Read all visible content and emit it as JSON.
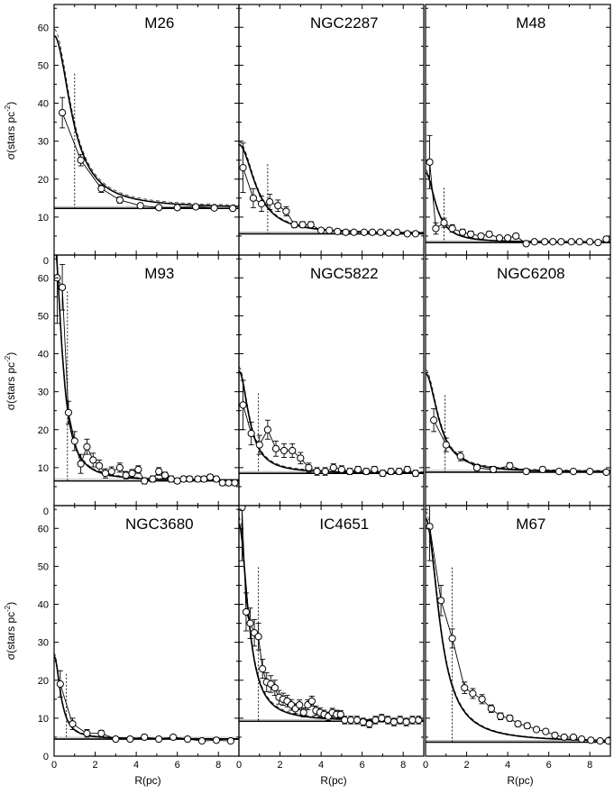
{
  "figure": {
    "ylabel_prefix": "σ(stars pc",
    "ylabel_exp": "-2",
    "ylabel_suffix": ")",
    "xlabel": "R(pc)",
    "colors": {
      "ink": "#000000",
      "background": "#ffffff"
    }
  },
  "chart_data": [
    {
      "type": "scatter",
      "title": "M26",
      "xlabel": "",
      "ylabel": "σ(stars pc-2)",
      "xlim": [
        0,
        9
      ],
      "ylim": [
        0,
        66
      ],
      "xticks": [
        0,
        2,
        4,
        6,
        8
      ],
      "yticks": [
        10,
        20,
        30,
        40,
        50,
        60
      ],
      "background": 12.3,
      "core_radius": 1.0,
      "points": [
        [
          0.4,
          37.5,
          4.0
        ],
        [
          1.3,
          25.0,
          1.5
        ],
        [
          2.3,
          17.5,
          1.0
        ],
        [
          3.2,
          14.5,
          0.8
        ],
        [
          4.2,
          13.0,
          0.6
        ],
        [
          5.1,
          12.5,
          0.5
        ],
        [
          6.0,
          12.5,
          0.5
        ],
        [
          6.9,
          12.7,
          0.5
        ],
        [
          7.8,
          12.4,
          0.5
        ],
        [
          8.7,
          12.3,
          0.5
        ]
      ],
      "fit": {
        "central": 45.5,
        "rc": 0.95
      }
    },
    {
      "type": "scatter",
      "title": "NGC2287",
      "xlabel": "",
      "ylabel": "",
      "xlim": [
        0,
        9
      ],
      "ylim": [
        0,
        66
      ],
      "xticks": [
        0,
        2,
        4,
        6,
        8
      ],
      "yticks": [
        10,
        20,
        30,
        40,
        50,
        60
      ],
      "background": 5.6,
      "core_radius": 1.4,
      "points": [
        [
          0.2,
          23.0,
          6.5
        ],
        [
          0.7,
          15.0,
          2.5
        ],
        [
          1.1,
          13.5,
          2.0
        ],
        [
          1.5,
          14.0,
          2.0
        ],
        [
          1.9,
          13.0,
          1.5
        ],
        [
          2.3,
          11.5,
          1.2
        ],
        [
          2.7,
          8.0,
          0.8
        ],
        [
          3.1,
          8.0,
          0.8
        ],
        [
          3.5,
          8.0,
          0.8
        ],
        [
          4.0,
          6.5,
          0.6
        ],
        [
          4.4,
          6.5,
          0.6
        ],
        [
          4.8,
          6.2,
          0.6
        ],
        [
          5.2,
          6.0,
          0.5
        ],
        [
          5.6,
          6.0,
          0.5
        ],
        [
          6.1,
          6.0,
          0.5
        ],
        [
          6.5,
          6.0,
          0.5
        ],
        [
          6.9,
          6.0,
          0.5
        ],
        [
          7.3,
          5.8,
          0.5
        ],
        [
          7.7,
          6.0,
          0.5
        ],
        [
          8.2,
          5.6,
          0.5
        ],
        [
          8.6,
          5.6,
          0.5
        ]
      ],
      "fit": {
        "central": 23.5,
        "rc": 0.9
      }
    },
    {
      "type": "scatter",
      "title": "M48",
      "xlabel": "",
      "ylabel": "",
      "xlim": [
        0,
        9
      ],
      "ylim": [
        0,
        66
      ],
      "xticks": [
        0,
        2,
        4,
        6,
        8
      ],
      "yticks": [
        10,
        20,
        30,
        40,
        50,
        60
      ],
      "background": 3.3,
      "core_radius": 0.9,
      "points": [
        [
          0.2,
          24.5,
          7.0
        ],
        [
          0.5,
          7.0,
          1.5
        ],
        [
          0.9,
          8.5,
          1.2
        ],
        [
          1.3,
          7.0,
          1.0
        ],
        [
          1.8,
          6.0,
          0.8
        ],
        [
          2.2,
          5.5,
          0.8
        ],
        [
          2.7,
          5.0,
          0.7
        ],
        [
          3.1,
          5.5,
          0.7
        ],
        [
          3.6,
          4.5,
          0.6
        ],
        [
          4.0,
          4.5,
          0.6
        ],
        [
          4.4,
          5.0,
          0.6
        ],
        [
          4.9,
          3.0,
          0.4
        ],
        [
          5.3,
          3.5,
          0.4
        ],
        [
          5.8,
          3.5,
          0.4
        ],
        [
          6.2,
          3.5,
          0.4
        ],
        [
          6.6,
          3.5,
          0.4
        ],
        [
          7.1,
          3.5,
          0.4
        ],
        [
          7.5,
          3.5,
          0.4
        ],
        [
          8.0,
          3.5,
          0.4
        ],
        [
          8.4,
          3.3,
          0.4
        ],
        [
          8.8,
          4.2,
          0.4
        ]
      ],
      "fit": {
        "central": 18.5,
        "rc": 0.55
      }
    },
    {
      "type": "scatter",
      "title": "M93",
      "xlabel": "",
      "ylabel": "σ(stars pc-2)",
      "xlim": [
        0,
        9
      ],
      "ylim": [
        0,
        66
      ],
      "xticks": [
        0,
        2,
        4,
        6,
        8
      ],
      "yticks": [
        10,
        20,
        30,
        40,
        50,
        60
      ],
      "background": 6.5,
      "core_radius": 0.65,
      "points": [
        [
          0.15,
          60.0,
          12.0
        ],
        [
          0.4,
          57.5,
          6.0
        ],
        [
          0.7,
          24.5,
          3.0
        ],
        [
          1.0,
          17.0,
          2.5
        ],
        [
          1.3,
          11.0,
          2.5
        ],
        [
          1.6,
          15.5,
          2.0
        ],
        [
          1.9,
          12.0,
          1.8
        ],
        [
          2.2,
          10.5,
          1.5
        ],
        [
          2.5,
          8.5,
          1.2
        ],
        [
          2.8,
          9.0,
          1.2
        ],
        [
          3.2,
          10.0,
          1.2
        ],
        [
          3.5,
          8.0,
          1.0
        ],
        [
          3.8,
          8.5,
          1.0
        ],
        [
          4.1,
          9.5,
          1.0
        ],
        [
          4.4,
          6.5,
          0.8
        ],
        [
          4.8,
          7.0,
          0.8
        ],
        [
          5.1,
          9.0,
          1.0
        ],
        [
          5.4,
          8.0,
          0.8
        ],
        [
          5.7,
          7.0,
          0.8
        ],
        [
          6.0,
          6.5,
          0.7
        ],
        [
          6.3,
          7.0,
          0.7
        ],
        [
          6.6,
          7.0,
          0.7
        ],
        [
          7.0,
          7.0,
          0.7
        ],
        [
          7.3,
          7.0,
          0.7
        ],
        [
          7.6,
          7.5,
          0.7
        ],
        [
          7.9,
          7.0,
          0.7
        ],
        [
          8.2,
          6.0,
          0.7
        ],
        [
          8.5,
          6.0,
          0.7
        ],
        [
          8.8,
          6.0,
          0.7
        ]
      ],
      "fit": {
        "central": 64.0,
        "rc": 0.42
      }
    },
    {
      "type": "scatter",
      "title": "NGC5822",
      "xlabel": "",
      "ylabel": "",
      "xlim": [
        0,
        9
      ],
      "ylim": [
        0,
        66
      ],
      "xticks": [
        0,
        2,
        4,
        6,
        8
      ],
      "yticks": [
        10,
        20,
        30,
        40,
        50,
        60
      ],
      "background": 8.5,
      "core_radius": 0.95,
      "points": [
        [
          0.2,
          26.5,
          6.5
        ],
        [
          0.6,
          19.0,
          3.0
        ],
        [
          1.0,
          16.0,
          2.5
        ],
        [
          1.4,
          20.0,
          2.5
        ],
        [
          1.8,
          15.0,
          2.0
        ],
        [
          2.2,
          14.5,
          1.8
        ],
        [
          2.6,
          14.5,
          1.8
        ],
        [
          3.0,
          12.5,
          1.5
        ],
        [
          3.4,
          10.0,
          1.2
        ],
        [
          3.8,
          9.0,
          1.0
        ],
        [
          4.2,
          9.0,
          1.0
        ],
        [
          4.6,
          10.0,
          1.0
        ],
        [
          5.0,
          9.5,
          1.0
        ],
        [
          5.4,
          9.0,
          0.8
        ],
        [
          5.8,
          9.5,
          0.8
        ],
        [
          6.2,
          9.0,
          0.8
        ],
        [
          6.6,
          9.5,
          0.8
        ],
        [
          7.0,
          8.5,
          0.8
        ],
        [
          7.4,
          9.0,
          0.8
        ],
        [
          7.8,
          9.0,
          0.8
        ],
        [
          8.2,
          9.5,
          0.8
        ],
        [
          8.6,
          8.5,
          0.8
        ]
      ],
      "fit": {
        "central": 27.0,
        "rc": 0.55
      }
    },
    {
      "type": "scatter",
      "title": "NGC6208",
      "xlabel": "",
      "ylabel": "",
      "xlim": [
        0,
        9
      ],
      "ylim": [
        0,
        66
      ],
      "xticks": [
        0,
        2,
        4,
        6,
        8
      ],
      "yticks": [
        10,
        20,
        30,
        40,
        50,
        60
      ],
      "background": 8.8,
      "core_radius": 0.95,
      "points": [
        [
          0.4,
          22.5,
          3.0
        ],
        [
          1.0,
          16.0,
          1.8
        ],
        [
          1.7,
          13.0,
          1.2
        ],
        [
          2.5,
          10.0,
          0.8
        ],
        [
          3.3,
          9.5,
          0.8
        ],
        [
          4.1,
          10.5,
          0.8
        ],
        [
          4.9,
          9.0,
          0.7
        ],
        [
          5.7,
          9.5,
          0.7
        ],
        [
          6.5,
          9.0,
          0.6
        ],
        [
          7.2,
          9.0,
          0.6
        ],
        [
          8.0,
          9.0,
          0.6
        ],
        [
          8.8,
          8.8,
          0.6
        ]
      ],
      "fit": {
        "central": 26.0,
        "rc": 0.7
      }
    },
    {
      "type": "scatter",
      "title": "NGC3680",
      "xlabel": "R(pc)",
      "ylabel": "σ(stars pc-2)",
      "xlim": [
        0,
        9
      ],
      "ylim": [
        0,
        66
      ],
      "xticks": [
        0,
        2,
        4,
        6,
        8
      ],
      "yticks": [
        10,
        20,
        30,
        40,
        50,
        60
      ],
      "background": 4.5,
      "core_radius": 0.6,
      "points": [
        [
          0.3,
          19.0,
          3.5
        ],
        [
          0.9,
          8.5,
          1.5
        ],
        [
          1.6,
          6.0,
          1.0
        ],
        [
          2.3,
          6.0,
          0.8
        ],
        [
          3.0,
          4.5,
          0.6
        ],
        [
          3.7,
          4.5,
          0.6
        ],
        [
          4.4,
          5.0,
          0.6
        ],
        [
          5.1,
          4.5,
          0.5
        ],
        [
          5.8,
          5.0,
          0.5
        ],
        [
          6.5,
          4.5,
          0.5
        ],
        [
          7.2,
          4.0,
          0.5
        ],
        [
          7.9,
          4.2,
          0.5
        ],
        [
          8.6,
          4.0,
          0.5
        ]
      ],
      "fit": {
        "central": 22.0,
        "rc": 0.35
      }
    },
    {
      "type": "scatter",
      "title": "IC4651",
      "xlabel": "R(pc)",
      "ylabel": "",
      "xlim": [
        0,
        9
      ],
      "ylim": [
        0,
        66
      ],
      "xticks": [
        0,
        2,
        4,
        6,
        8
      ],
      "yticks": [
        10,
        20,
        30,
        40,
        50,
        60
      ],
      "background": 9.2,
      "core_radius": 0.95,
      "points": [
        [
          0.15,
          65.5,
          14.0
        ],
        [
          0.35,
          38.0,
          5.0
        ],
        [
          0.55,
          35.0,
          4.0
        ],
        [
          0.75,
          32.5,
          3.5
        ],
        [
          0.95,
          31.5,
          3.5
        ],
        [
          1.15,
          23.0,
          2.5
        ],
        [
          1.35,
          19.5,
          2.5
        ],
        [
          1.55,
          19.0,
          2.2
        ],
        [
          1.75,
          18.0,
          2.0
        ],
        [
          1.95,
          15.5,
          1.8
        ],
        [
          2.15,
          15.0,
          1.6
        ],
        [
          2.35,
          14.5,
          1.5
        ],
        [
          2.55,
          13.5,
          1.4
        ],
        [
          2.75,
          12.5,
          1.3
        ],
        [
          2.95,
          13.5,
          1.3
        ],
        [
          3.15,
          11.5,
          1.2
        ],
        [
          3.35,
          13.5,
          1.3
        ],
        [
          3.55,
          14.5,
          1.3
        ],
        [
          3.75,
          12.0,
          1.2
        ],
        [
          3.95,
          11.5,
          1.2
        ],
        [
          4.15,
          11.0,
          1.1
        ],
        [
          4.35,
          10.5,
          1.1
        ],
        [
          4.55,
          11.5,
          1.1
        ],
        [
          4.75,
          11.0,
          1.1
        ],
        [
          4.95,
          11.0,
          1.0
        ],
        [
          5.15,
          9.5,
          1.0
        ],
        [
          5.45,
          9.5,
          1.0
        ],
        [
          5.75,
          9.5,
          1.0
        ],
        [
          6.05,
          9.0,
          1.0
        ],
        [
          6.35,
          8.5,
          1.0
        ],
        [
          6.65,
          9.5,
          1.0
        ],
        [
          6.95,
          10.0,
          1.0
        ],
        [
          7.25,
          9.5,
          1.0
        ],
        [
          7.55,
          9.0,
          1.0
        ],
        [
          7.85,
          9.5,
          1.0
        ],
        [
          8.15,
          9.0,
          1.0
        ],
        [
          8.45,
          9.5,
          1.0
        ],
        [
          8.75,
          9.5,
          1.0
        ]
      ],
      "fit": {
        "central": 52.0,
        "rc": 0.5
      }
    },
    {
      "type": "scatter",
      "title": "M67",
      "xlabel": "R(pc)",
      "ylabel": "",
      "xlim": [
        0,
        9
      ],
      "ylim": [
        0,
        66
      ],
      "xticks": [
        0,
        2,
        4,
        6,
        8
      ],
      "yticks": [
        10,
        20,
        30,
        40,
        50,
        60
      ],
      "background": 3.7,
      "core_radius": 1.3,
      "points": [
        [
          0.2,
          60.5,
          9.0
        ],
        [
          0.75,
          41.0,
          4.0
        ],
        [
          1.3,
          31.0,
          2.5
        ],
        [
          1.9,
          18.0,
          1.5
        ],
        [
          2.3,
          16.5,
          1.3
        ],
        [
          2.75,
          15.0,
          1.2
        ],
        [
          3.2,
          12.5,
          1.0
        ],
        [
          3.65,
          10.5,
          0.9
        ],
        [
          4.1,
          10.0,
          0.8
        ],
        [
          4.5,
          8.5,
          0.7
        ],
        [
          4.95,
          8.0,
          0.7
        ],
        [
          5.4,
          7.0,
          0.6
        ],
        [
          5.85,
          6.5,
          0.6
        ],
        [
          6.3,
          5.5,
          0.5
        ],
        [
          6.75,
          5.0,
          0.5
        ],
        [
          7.2,
          5.0,
          0.5
        ],
        [
          7.6,
          4.5,
          0.5
        ],
        [
          8.05,
          4.2,
          0.5
        ],
        [
          8.5,
          4.0,
          0.5
        ],
        [
          8.9,
          4.0,
          0.5
        ]
      ],
      "fit": {
        "central": 59.0,
        "rc": 0.75
      }
    }
  ]
}
